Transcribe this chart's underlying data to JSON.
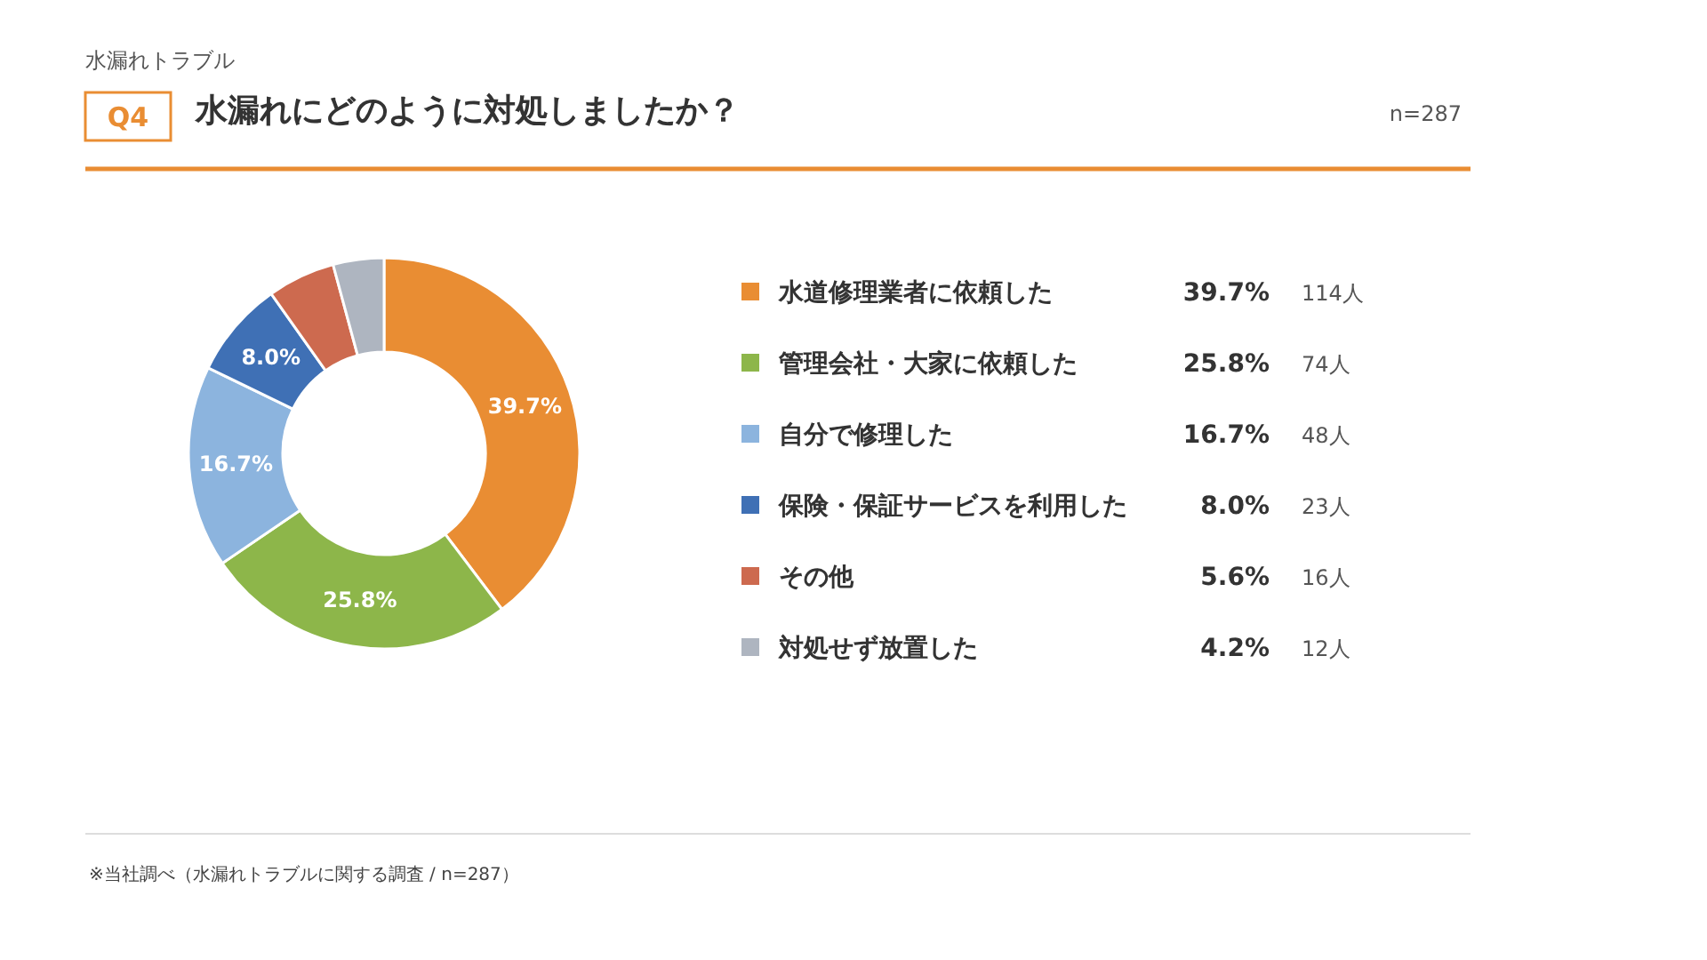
{
  "chart_data": {
    "type": "donut",
    "subtitle": "水漏れトラブル",
    "title": "水漏れにどのように対処しましたか？",
    "categories": [
      "水道修理業者に依頼した",
      "管理会社・大家に依頼した",
      "自分で修理した",
      "保険・保証サービスを利用した",
      "その他",
      "対処せず放置した"
    ],
    "values": [
      39.7,
      25.8,
      16.7,
      8.0,
      5.6,
      4.2
    ],
    "colors": [
      "#e98d33",
      "#8db64a",
      "#8cb4de",
      "#3f70b5",
      "#cd6a4f",
      "#aeb5c0"
    ],
    "value_labels": [
      "39.7%",
      "25.8%",
      "16.7%",
      "8.0%",
      "5.6%",
      "4.2%"
    ],
    "legend": "right",
    "annotations": [
      "Q4",
      "n=287",
      "114人",
      "74人",
      "48人",
      "23人",
      "16人",
      "12人",
      "※当社調べ（水漏れトラブルに関する調査 / n=287）"
    ]
  }
}
